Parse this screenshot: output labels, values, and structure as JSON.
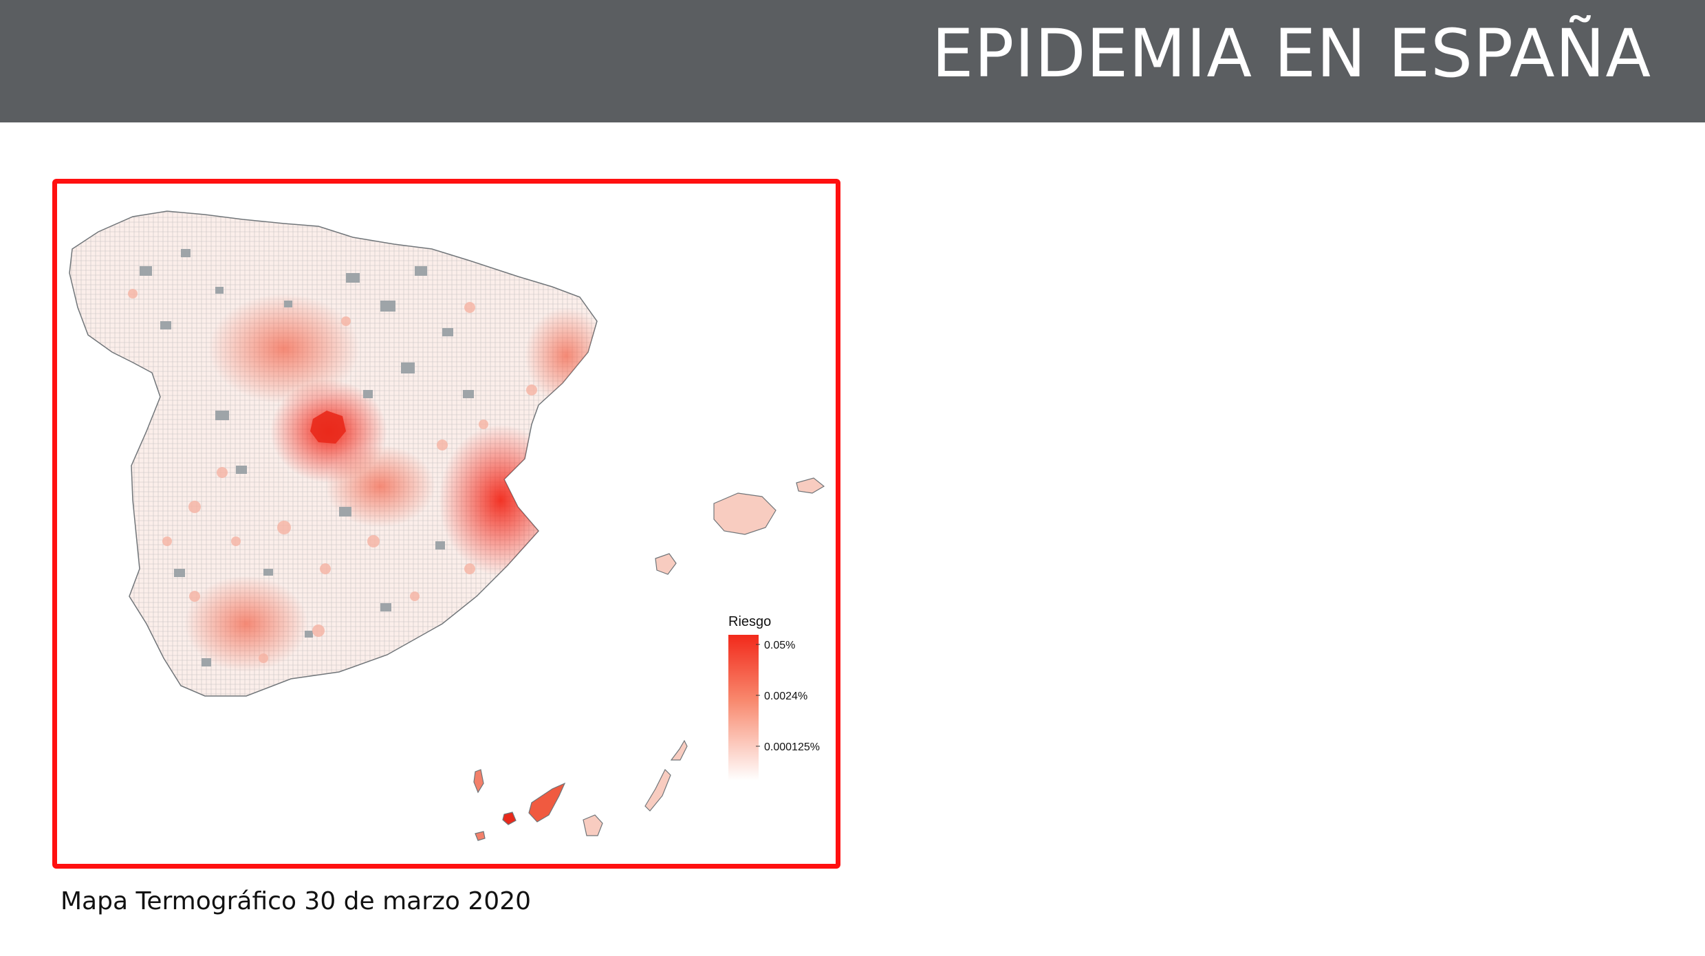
{
  "header": {
    "title": "EPIDEMIA EN ESPAÑA"
  },
  "map": {
    "legend": {
      "title": "Riesgo",
      "ticks": [
        "0.05%",
        "0.0024%",
        "0.000125%"
      ],
      "colors": {
        "high": "#f2291b",
        "mid": "#f8896e",
        "low": "#ffffff"
      }
    },
    "colors": {
      "border": "#ff1010",
      "no_data": "#9ea4a8",
      "municipality_edge": "#6f7478"
    }
  },
  "caption": "Mapa Termográfico 30 de marzo 2020"
}
